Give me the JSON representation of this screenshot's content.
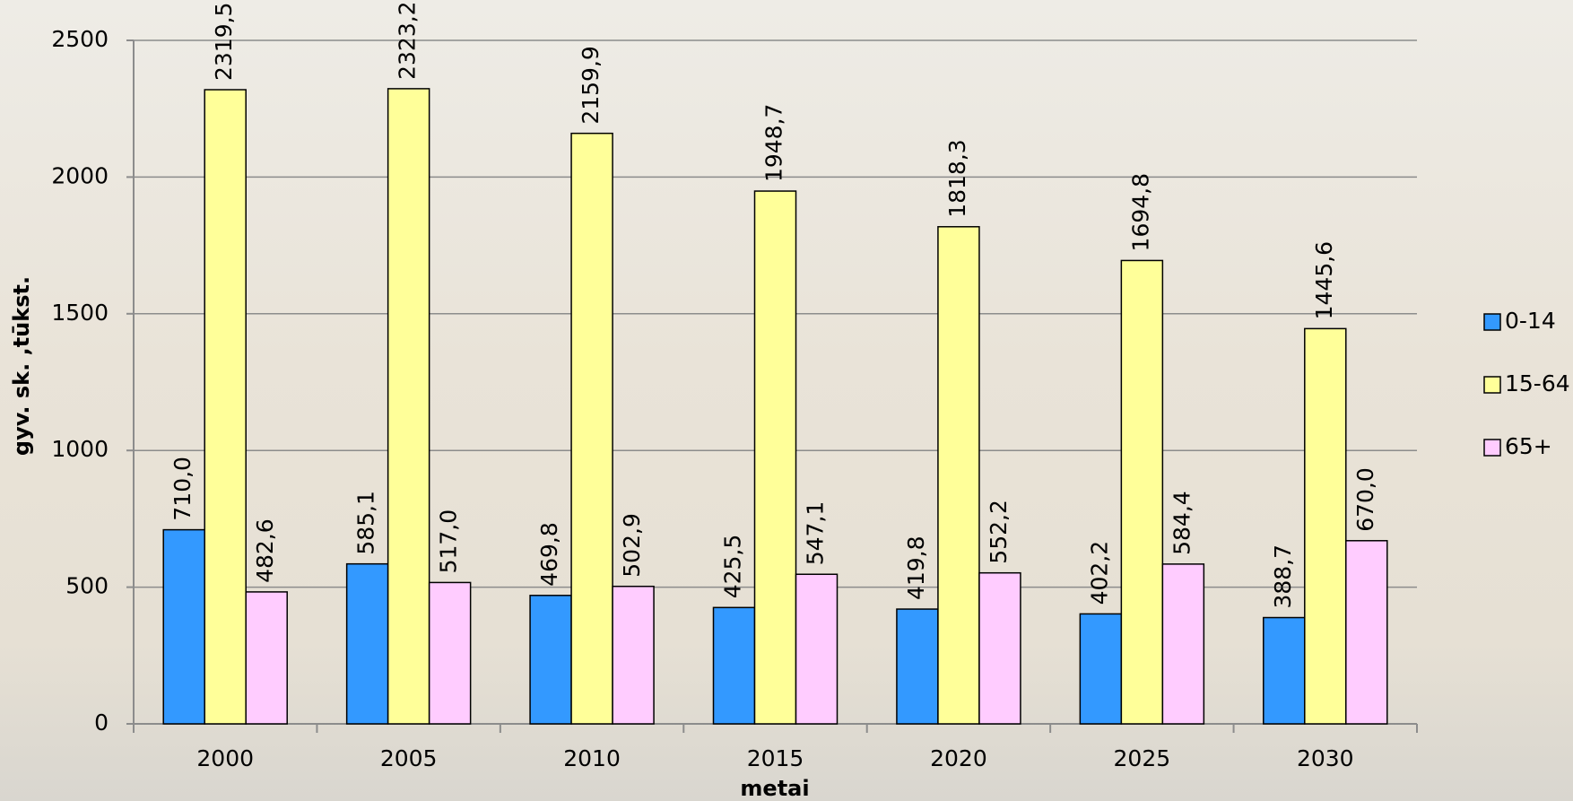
{
  "chart_data": {
    "type": "bar",
    "categories": [
      "2000",
      "2005",
      "2010",
      "2015",
      "2020",
      "2025",
      "2030"
    ],
    "series": [
      {
        "name": "0-14",
        "color": "#3399ff",
        "values": [
          710.0,
          585.1,
          469.8,
          425.5,
          419.8,
          402.2,
          388.7
        ],
        "value_labels": [
          "710,0",
          "585,1",
          "469,8",
          "425,5",
          "419,8",
          "402,2",
          "388,7"
        ]
      },
      {
        "name": "15-64",
        "color": "#ffff99",
        "values": [
          2319.5,
          2323.2,
          2159.9,
          1948.7,
          1818.3,
          1694.8,
          1445.6
        ],
        "value_labels": [
          "2319,5",
          "2323,2",
          "2159,9",
          "1948,7",
          "1818,3",
          "1694,8",
          "1445,6"
        ]
      },
      {
        "name": "65+",
        "color": "#ffccff",
        "values": [
          482.6,
          517.0,
          502.9,
          547.1,
          552.2,
          584.4,
          670.0
        ],
        "value_labels": [
          "482,6",
          "517,0",
          "502,9",
          "547,1",
          "552,2",
          "584,4",
          "670,0"
        ]
      }
    ],
    "x_label": "metai",
    "y_label": "gyv. sk. ,tūkst.",
    "ylim": [
      0,
      2500
    ],
    "yticks": [
      0,
      500,
      1000,
      1500,
      2000,
      2500
    ],
    "grid": true,
    "legend": "right"
  }
}
